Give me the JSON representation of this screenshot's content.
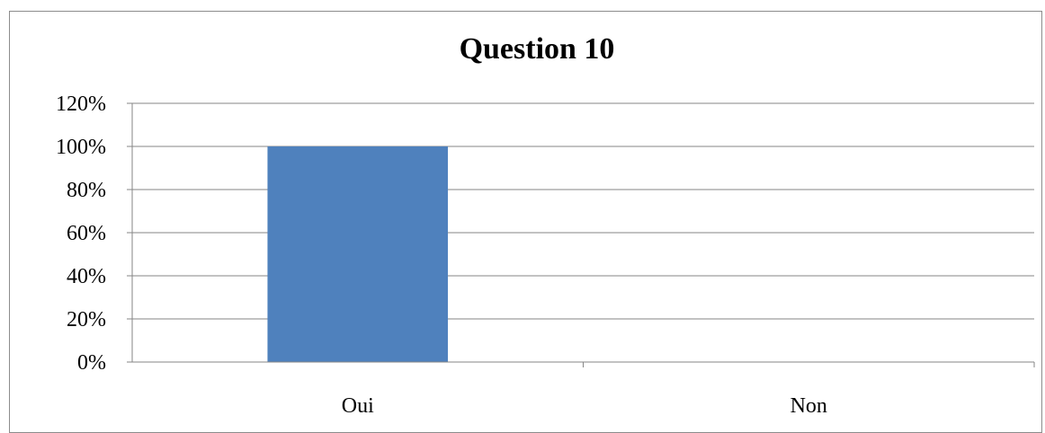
{
  "chart_data": {
    "type": "bar",
    "title": "Question 10",
    "xlabel": "",
    "ylabel": "",
    "categories": [
      "Oui",
      "Non"
    ],
    "values": [
      1.0,
      0.0
    ],
    "ylim": [
      0,
      1.2
    ],
    "yticks": [
      "0%",
      "20%",
      "40%",
      "60%",
      "80%",
      "100%",
      "120%"
    ],
    "grid": true,
    "legend": "none",
    "bar_color": "#4f81bd"
  }
}
